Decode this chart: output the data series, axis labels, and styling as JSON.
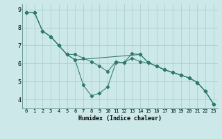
{
  "xlabel": "Humidex (Indice chaleur)",
  "background_color": "#cce8e8",
  "grid_color": "#aacccc",
  "line_color": "#2d7a6a",
  "xlim": [
    -0.5,
    23.5
  ],
  "ylim": [
    3.5,
    9.3
  ],
  "yticks": [
    4,
    5,
    6,
    7,
    8,
    9
  ],
  "xticks": [
    0,
    1,
    2,
    3,
    4,
    5,
    6,
    7,
    8,
    9,
    10,
    11,
    12,
    13,
    14,
    15,
    16,
    17,
    18,
    19,
    20,
    21,
    22,
    23
  ],
  "series1_x": [
    0,
    1,
    2,
    3,
    4,
    5,
    6,
    7,
    8,
    9,
    10,
    11,
    12,
    13,
    14,
    15,
    16,
    17,
    18,
    19,
    20,
    21,
    22,
    23
  ],
  "series1_y": [
    8.85,
    8.85,
    7.8,
    7.5,
    7.0,
    6.5,
    6.2,
    4.8,
    4.2,
    4.35,
    4.7,
    6.05,
    6.05,
    6.55,
    6.5,
    6.05,
    5.85,
    5.65,
    5.5,
    5.35,
    5.2,
    4.95,
    4.45,
    3.75
  ],
  "series2_x": [
    0,
    1,
    2,
    3,
    4,
    5,
    6,
    14,
    15,
    16,
    17,
    18,
    19,
    20,
    21,
    22,
    23
  ],
  "series2_y": [
    8.85,
    8.85,
    7.8,
    7.5,
    7.0,
    6.5,
    6.2,
    6.5,
    6.05,
    5.85,
    5.65,
    5.5,
    5.35,
    5.2,
    4.95,
    4.45,
    3.75
  ],
  "series3_x": [
    0,
    1,
    2,
    3,
    4,
    5,
    6,
    7,
    8,
    9,
    10,
    11,
    12,
    13,
    14,
    15,
    16,
    17,
    18,
    19,
    20,
    21,
    22,
    23
  ],
  "series3_y": [
    8.85,
    8.85,
    7.8,
    7.5,
    7.0,
    6.5,
    6.5,
    6.3,
    6.1,
    5.85,
    5.55,
    6.1,
    6.05,
    6.3,
    6.1,
    6.05,
    5.85,
    5.65,
    5.5,
    5.35,
    5.2,
    4.95,
    4.45,
    3.75
  ],
  "xlabel_fontsize": 6.0,
  "tick_fontsize": 5.0
}
